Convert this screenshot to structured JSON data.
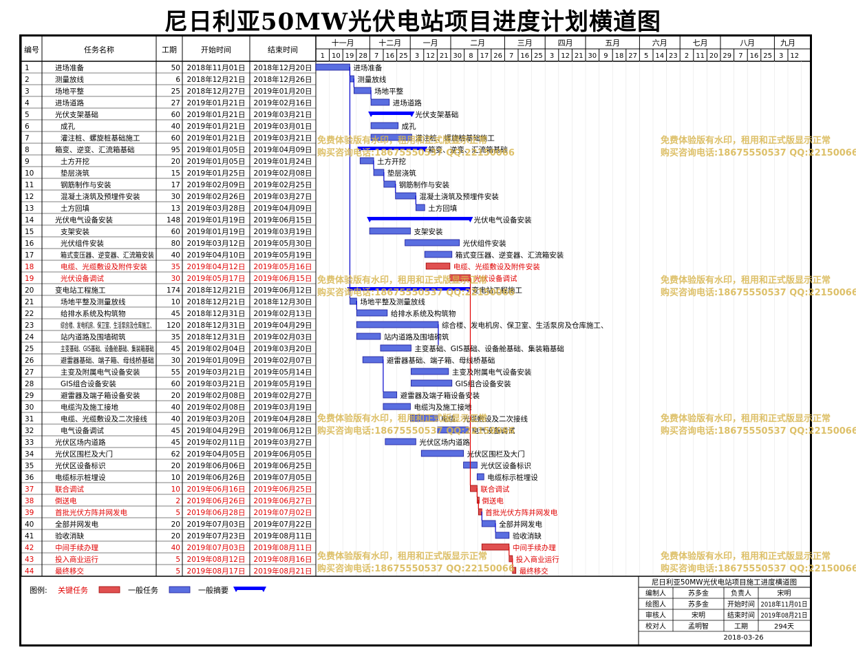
{
  "title": "尼日利亚50MW光伏电站项目进度计划横道图",
  "headers": {
    "no": "编号",
    "name": "任务名称",
    "dur": "工期",
    "start": "开始时间",
    "end": "结束时间"
  },
  "months": [
    {
      "label": "十一月",
      "days": [
        1,
        10,
        19,
        28
      ]
    },
    {
      "label": "十二月",
      "days": [
        7,
        16,
        25
      ]
    },
    {
      "label": "一月",
      "days": [
        3,
        12,
        21
      ]
    },
    {
      "label": "二月",
      "days": [
        30,
        8,
        17,
        26
      ]
    },
    {
      "label": "三月",
      "days": [
        7,
        16,
        25
      ]
    },
    {
      "label": "四月",
      "days": [
        3,
        12,
        21
      ]
    },
    {
      "label": "五月",
      "days": [
        30,
        9,
        18,
        27
      ]
    },
    {
      "label": "六月",
      "days": [
        5,
        14,
        23
      ]
    },
    {
      "label": "七月",
      "days": [
        2,
        11,
        20
      ]
    },
    {
      "label": "八月",
      "days": [
        29,
        7,
        16,
        25
      ]
    },
    {
      "label": "九月",
      "days": [
        3,
        12
      ]
    }
  ],
  "watermark": {
    "line1": "免费体验版有水印，租用和正式版显示正常",
    "line2": "购买咨询电话:18675550537 QQ:22150066"
  },
  "chart_data": {
    "type": "gantt",
    "x_axis": {
      "type": "date",
      "range": [
        "2018-11-01",
        "2019-09-16"
      ],
      "tick_interval_days": 9
    },
    "tasks": [
      {
        "no": "1",
        "name": "进场准备",
        "dur": "50",
        "start": "2018年11月01日",
        "end": "2018年12月20日",
        "s": "2018-11-01",
        "e": "2018-12-20",
        "kind": "normal",
        "label": "进场准备"
      },
      {
        "no": "2",
        "name": "测量放线",
        "dur": "6",
        "start": "2018年12月21日",
        "end": "2018年12月26日",
        "s": "2018-12-21",
        "e": "2018-12-26",
        "kind": "normal",
        "label": "测量放线"
      },
      {
        "no": "3",
        "name": "场地平整",
        "dur": "25",
        "start": "2018年12月27日",
        "end": "2019年01月20日",
        "s": "2018-12-27",
        "e": "2019-01-20",
        "kind": "normal",
        "label": "场地平整"
      },
      {
        "no": "4",
        "name": "进场道路",
        "dur": "27",
        "start": "2019年01月21日",
        "end": "2019年02月16日",
        "s": "2019-01-21",
        "e": "2019-02-16",
        "kind": "normal",
        "label": "进场道路"
      },
      {
        "no": "5",
        "name": "光伏支架基础",
        "dur": "60",
        "start": "2019年01月21日",
        "end": "2019年03月21日",
        "s": "2019-01-21",
        "e": "2019-03-21",
        "kind": "summary",
        "label": "光伏支架基础"
      },
      {
        "no": "6",
        "name": "成孔",
        "dur": "40",
        "start": "2019年01月21日",
        "end": "2019年03月01日",
        "s": "2019-01-21",
        "e": "2019-03-01",
        "kind": "normal",
        "label": "成孔",
        "indent": true
      },
      {
        "no": "7",
        "name": "灌注桩、螺旋桩基础施工",
        "dur": "60",
        "start": "2019年01月21日",
        "end": "2019年03月21日",
        "s": "2019-01-21",
        "e": "2019-03-21",
        "kind": "normal",
        "label": "灌注桩、螺旋桩基础施工",
        "indent": true
      },
      {
        "no": "8",
        "name": "箱变、逆变、汇流箱基础",
        "dur": "95",
        "start": "2019年01月05日",
        "end": "2019年04月09日",
        "s": "2019-01-05",
        "e": "2019-04-09",
        "kind": "summary",
        "label": "箱变、逆变、汇流箱基础"
      },
      {
        "no": "9",
        "name": "土方开挖",
        "dur": "20",
        "start": "2019年01月05日",
        "end": "2019年01月24日",
        "s": "2019-01-05",
        "e": "2019-01-24",
        "kind": "normal",
        "label": "土方开挖",
        "indent": true
      },
      {
        "no": "10",
        "name": "垫层浇筑",
        "dur": "15",
        "start": "2019年01月25日",
        "end": "2019年02月08日",
        "s": "2019-01-25",
        "e": "2019-02-08",
        "kind": "normal",
        "label": "垫层浇筑",
        "indent": true
      },
      {
        "no": "11",
        "name": "钢筋制作与安装",
        "dur": "17",
        "start": "2019年02月09日",
        "end": "2019年02月25日",
        "s": "2019-02-09",
        "e": "2019-02-25",
        "kind": "normal",
        "label": "钢筋制作与安装",
        "indent": true
      },
      {
        "no": "12",
        "name": "混凝土浇筑及预埋件安装",
        "dur": "30",
        "start": "2019年02月26日",
        "end": "2019年03月27日",
        "s": "2019-02-26",
        "e": "2019-03-27",
        "kind": "normal",
        "label": "混凝土浇筑及预埋件安装",
        "indent": true
      },
      {
        "no": "13",
        "name": "土方回填",
        "dur": "13",
        "start": "2019年03月28日",
        "end": "2019年04月09日",
        "s": "2019-03-28",
        "e": "2019-04-09",
        "kind": "normal",
        "label": "土方回填",
        "indent": true
      },
      {
        "no": "14",
        "name": "光伏电气设备安装",
        "dur": "148",
        "start": "2019年01月19日",
        "end": "2019年06月15日",
        "s": "2019-01-19",
        "e": "2019-06-15",
        "kind": "summary",
        "label": "光伏电气设备安装"
      },
      {
        "no": "15",
        "name": "支架安装",
        "dur": "60",
        "start": "2019年01月19日",
        "end": "2019年03月19日",
        "s": "2019-01-19",
        "e": "2019-03-19",
        "kind": "normal",
        "label": "支架安装",
        "indent": true
      },
      {
        "no": "16",
        "name": "光伏组件安装",
        "dur": "80",
        "start": "2019年03月12日",
        "end": "2019年05月30日",
        "s": "2019-03-12",
        "e": "2019-05-30",
        "kind": "normal",
        "label": "光伏组件安装",
        "indent": true
      },
      {
        "no": "17",
        "name": "箱式变压器、逆变器、汇流箱安装",
        "dur": "40",
        "start": "2019年04月10日",
        "end": "2019年05月19日",
        "s": "2019-04-10",
        "e": "2019-05-19",
        "kind": "normal",
        "label": "箱式变压器、逆变器、汇流箱安装",
        "indent": true
      },
      {
        "no": "18",
        "name": "电缆、光缆敷设及附件安装",
        "dur": "35",
        "start": "2019年04月12日",
        "end": "2019年05月16日",
        "s": "2019-04-12",
        "e": "2019-05-16",
        "kind": "critical",
        "label": "电缆、光缆敷设及附件安装",
        "indent": true
      },
      {
        "no": "19",
        "name": "光伏设备调试",
        "dur": "30",
        "start": "2019年05月17日",
        "end": "2019年06月15日",
        "s": "2019-05-17",
        "e": "2019-06-15",
        "kind": "critical",
        "label": "光伏设备调试",
        "indent": true
      },
      {
        "no": "20",
        "name": "变电站工程施工",
        "dur": "174",
        "start": "2018年12月21日",
        "end": "2019年06月12日",
        "s": "2018-12-21",
        "e": "2019-06-12",
        "kind": "summary",
        "label": "变电站工程施工"
      },
      {
        "no": "21",
        "name": "场地平整及测量放线",
        "dur": "10",
        "start": "2018年12月21日",
        "end": "2018年12月30日",
        "s": "2018-12-21",
        "e": "2018-12-30",
        "kind": "normal",
        "label": "场地平整及测量放线",
        "indent": true
      },
      {
        "no": "22",
        "name": "给排水系统及构筑物",
        "dur": "45",
        "start": "2018年12月31日",
        "end": "2019年02月13日",
        "s": "2018-12-31",
        "e": "2019-02-13",
        "kind": "normal",
        "label": "给排水系统及构筑物",
        "indent": true
      },
      {
        "no": "23",
        "name": "综合楼、发电机房、保卫室、生活泵房及仓库施工、",
        "dur": "120",
        "start": "2018年12月31日",
        "end": "2019年04月29日",
        "s": "2018-12-31",
        "e": "2019-04-29",
        "kind": "normal",
        "label": "综合楼、发电机房、保卫室、生活泵房及仓库施工、",
        "indent": true
      },
      {
        "no": "24",
        "name": "站内道路及围墙砌筑",
        "dur": "35",
        "start": "2018年12月31日",
        "end": "2019年02月03日",
        "s": "2018-12-31",
        "e": "2019-02-03",
        "kind": "normal",
        "label": "站内道路及围墙砌筑",
        "indent": true
      },
      {
        "no": "25",
        "name": "主变基础、GIS基础、设备舱基础、集装箱基础",
        "dur": "45",
        "start": "2019年02月04日",
        "end": "2019年03月20日",
        "s": "2019-02-04",
        "e": "2019-03-20",
        "kind": "normal",
        "label": "主变基础、GIS基础、设备舱基础、集装箱基础",
        "indent": true
      },
      {
        "no": "26",
        "name": "避雷器基础、端子箱、母线桥基础",
        "dur": "30",
        "start": "2019年01月09日",
        "end": "2019年02月07日",
        "s": "2019-01-09",
        "e": "2019-02-07",
        "kind": "normal",
        "label": "避雷器基础、端子箱、母线桥基础",
        "indent": true
      },
      {
        "no": "27",
        "name": "主变及附属电气设备安装",
        "dur": "55",
        "start": "2019年03月21日",
        "end": "2019年05月14日",
        "s": "2019-03-21",
        "e": "2019-05-14",
        "kind": "normal",
        "label": "主变及附属电气设备安装",
        "indent": true
      },
      {
        "no": "28",
        "name": "GIS组合设备安装",
        "dur": "60",
        "start": "2019年03月21日",
        "end": "2019年05月19日",
        "s": "2019-03-21",
        "e": "2019-05-19",
        "kind": "normal",
        "label": "GIS组合设备安装",
        "indent": true
      },
      {
        "no": "29",
        "name": "避雷器及端子箱设备安装",
        "dur": "20",
        "start": "2019年02月08日",
        "end": "2019年02月27日",
        "s": "2019-02-08",
        "e": "2019-02-27",
        "kind": "normal",
        "label": "避雷器及端子箱设备安装",
        "indent": true
      },
      {
        "no": "30",
        "name": "电缆沟及施工接地",
        "dur": "40",
        "start": "2019年02月08日",
        "end": "2019年03月19日",
        "s": "2019-02-08",
        "e": "2019-03-19",
        "kind": "normal",
        "label": "电缆沟及施工接地",
        "indent": true
      },
      {
        "no": "31",
        "name": "电缆、光缆敷设及二次接线",
        "dur": "40",
        "start": "2019年03月20日",
        "end": "2019年04月28日",
        "s": "2019-03-20",
        "e": "2019-04-28",
        "kind": "normal",
        "label": "电缆、光缆敷设及二次接线",
        "indent": true
      },
      {
        "no": "32",
        "name": "电气设备调试",
        "dur": "45",
        "start": "2019年04月29日",
        "end": "2019年06月12日",
        "s": "2019-04-29",
        "e": "2019-06-12",
        "kind": "normal",
        "label": "电气设备调试",
        "indent": true
      },
      {
        "no": "33",
        "name": "光伏区场内道路",
        "dur": "45",
        "start": "2019年02月11日",
        "end": "2019年03月27日",
        "s": "2019-02-11",
        "e": "2019-03-27",
        "kind": "normal",
        "label": "光伏区场内道路"
      },
      {
        "no": "34",
        "name": "光伏区围栏及大门",
        "dur": "62",
        "start": "2019年04月05日",
        "end": "2019年06月05日",
        "s": "2019-04-05",
        "e": "2019-06-05",
        "kind": "normal",
        "label": "光伏区围栏及大门"
      },
      {
        "no": "35",
        "name": "光伏区设备标识",
        "dur": "20",
        "start": "2019年06月06日",
        "end": "2019年06月25日",
        "s": "2019-06-06",
        "e": "2019-06-25",
        "kind": "normal",
        "label": "光伏区设备标识"
      },
      {
        "no": "36",
        "name": "电缆标示桩埋设",
        "dur": "10",
        "start": "2019年06月26日",
        "end": "2019年07月05日",
        "s": "2019-06-26",
        "e": "2019-07-05",
        "kind": "normal",
        "label": "电缆标示桩埋设"
      },
      {
        "no": "37",
        "name": "联合调试",
        "dur": "10",
        "start": "2019年06月16日",
        "end": "2019年06月25日",
        "s": "2019-06-16",
        "e": "2019-06-25",
        "kind": "critical",
        "label": "联合调试"
      },
      {
        "no": "38",
        "name": "倒送电",
        "dur": "2",
        "start": "2019年06月26日",
        "end": "2019年06月27日",
        "s": "2019-06-26",
        "e": "2019-06-27",
        "kind": "critical",
        "label": "倒送电"
      },
      {
        "no": "39",
        "name": "首批光伏方阵并网发电",
        "dur": "5",
        "start": "2019年06月28日",
        "end": "2019年07月02日",
        "s": "2019-06-28",
        "e": "2019-07-02",
        "kind": "critical",
        "label": "首批光伏方阵并网发电"
      },
      {
        "no": "40",
        "name": "全部并网发电",
        "dur": "20",
        "start": "2019年07月03日",
        "end": "2019年07月22日",
        "s": "2019-07-03",
        "e": "2019-07-22",
        "kind": "normal",
        "label": "全部并网发电"
      },
      {
        "no": "41",
        "name": "验收消缺",
        "dur": "20",
        "start": "2019年07月23日",
        "end": "2019年08月11日",
        "s": "2019-07-23",
        "e": "2019-08-11",
        "kind": "normal",
        "label": "验收消缺"
      },
      {
        "no": "42",
        "name": "中间手续办理",
        "dur": "40",
        "start": "2019年07月03日",
        "end": "2019年08月11日",
        "s": "2019-07-03",
        "e": "2019-08-11",
        "kind": "critical",
        "label": "中间手续办理"
      },
      {
        "no": "43",
        "name": "投入商业运行",
        "dur": "5",
        "start": "2019年08月12日",
        "end": "2019年08月16日",
        "s": "2019-08-12",
        "e": "2019-08-16",
        "kind": "critical",
        "label": "投入商业运行"
      },
      {
        "no": "44",
        "name": "最终移交",
        "dur": "5",
        "start": "2019年08月17日",
        "end": "2019年08月21日",
        "s": "2019-08-17",
        "e": "2019-08-21",
        "kind": "critical",
        "label": "最终移交"
      }
    ]
  },
  "legend": {
    "label": "图例:",
    "critical": "关键任务",
    "normal": "一般任务",
    "summary": "一般摘要"
  },
  "colors": {
    "critical_text": "#e00000",
    "critical_bar": "#e05050",
    "normal_bar": "#5a6ee0",
    "summary_bar": "#0000ff",
    "link_blue": "#0000cc",
    "link_red": "#e00000"
  },
  "info": {
    "title": "尼日利亚50MW光伏电站项目施工进度横道图",
    "rows": [
      [
        "编制人",
        "苏多金",
        "负责人",
        "宋明"
      ],
      [
        "绘图人",
        "苏多金",
        "开始时间",
        "2018年11月01日"
      ],
      [
        "审核人",
        "宋明",
        "结束时间",
        "2019年08月21日"
      ],
      [
        "校对人",
        "孟明智",
        "工期",
        "294天"
      ]
    ],
    "date": "2018-03-26"
  }
}
